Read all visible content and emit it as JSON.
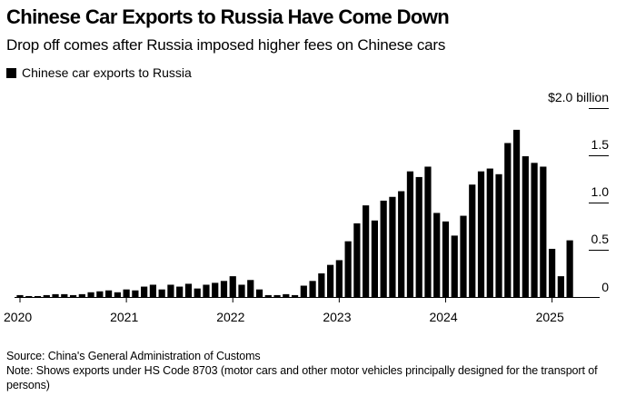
{
  "header": {
    "title": "Chinese Car Exports to Russia Have Come Down",
    "subtitle": "Drop off comes after Russia imposed higher fees on Chinese cars"
  },
  "legend": {
    "label": "Chinese car exports to Russia",
    "color": "#000000"
  },
  "footer": {
    "source": "Source: China's General Administration of Customs",
    "note": "Note: Shows exports under HS Code 8703 (motor cars and other motor vehicles principally designed for the transport of persons)"
  },
  "chart_data": {
    "type": "bar",
    "title": "Chinese Car Exports to Russia Have Come Down",
    "subtitle": "Drop off comes after Russia imposed higher fees on Chinese cars",
    "xlabel": "",
    "ylabel": "",
    "y_unit_label": "$2.0 billion",
    "ylim": [
      0,
      2.0
    ],
    "y_ticks": [
      {
        "value": 0,
        "label": "0"
      },
      {
        "value": 0.5,
        "label": "0.5"
      },
      {
        "value": 1.0,
        "label": "1.0"
      },
      {
        "value": 1.5,
        "label": "1.5"
      },
      {
        "value": 2.0,
        "label": "$2.0 billion"
      }
    ],
    "x_ticks": [
      {
        "index": 0,
        "label": "2020"
      },
      {
        "index": 12,
        "label": "2021"
      },
      {
        "index": 24,
        "label": "2022"
      },
      {
        "index": 36,
        "label": "2023"
      },
      {
        "index": 48,
        "label": "2024"
      },
      {
        "index": 60,
        "label": "2025"
      }
    ],
    "grid": false,
    "legend_position": "top-left",
    "series": [
      {
        "name": "Chinese car exports to Russia",
        "color": "#000000",
        "categories": [
          "2020-01",
          "2020-02",
          "2020-03",
          "2020-04",
          "2020-05",
          "2020-06",
          "2020-07",
          "2020-08",
          "2020-09",
          "2020-10",
          "2020-11",
          "2020-12",
          "2021-01",
          "2021-02",
          "2021-03",
          "2021-04",
          "2021-05",
          "2021-06",
          "2021-07",
          "2021-08",
          "2021-09",
          "2021-10",
          "2021-11",
          "2021-12",
          "2022-01",
          "2022-02",
          "2022-03",
          "2022-04",
          "2022-05",
          "2022-06",
          "2022-07",
          "2022-08",
          "2022-09",
          "2022-10",
          "2022-11",
          "2022-12",
          "2023-01",
          "2023-02",
          "2023-03",
          "2023-04",
          "2023-05",
          "2023-06",
          "2023-07",
          "2023-08",
          "2023-09",
          "2023-10",
          "2023-11",
          "2023-12",
          "2024-01",
          "2024-02",
          "2024-03",
          "2024-04",
          "2024-05",
          "2024-06",
          "2024-07",
          "2024-08",
          "2024-09",
          "2024-10",
          "2024-11",
          "2024-12",
          "2025-01",
          "2025-02",
          "2025-03"
        ],
        "values": [
          0.02,
          0.01,
          0.01,
          0.02,
          0.03,
          0.03,
          0.02,
          0.03,
          0.05,
          0.06,
          0.07,
          0.05,
          0.08,
          0.07,
          0.11,
          0.13,
          0.08,
          0.13,
          0.11,
          0.14,
          0.09,
          0.13,
          0.15,
          0.17,
          0.22,
          0.13,
          0.18,
          0.08,
          0.02,
          0.02,
          0.03,
          0.02,
          0.12,
          0.17,
          0.25,
          0.34,
          0.39,
          0.59,
          0.78,
          0.97,
          0.81,
          1.02,
          1.06,
          1.12,
          1.33,
          1.27,
          1.38,
          0.89,
          0.8,
          0.65,
          0.86,
          1.19,
          1.33,
          1.36,
          1.3,
          1.63,
          1.77,
          1.49,
          1.42,
          1.38,
          0.51,
          0.22,
          0.6
        ]
      }
    ]
  }
}
